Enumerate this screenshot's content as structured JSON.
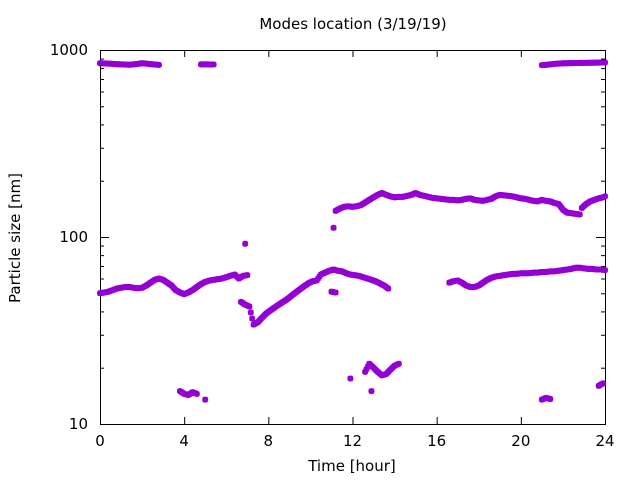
{
  "chart_data": {
    "type": "scatter",
    "title": "Modes location (3/19/19)",
    "xlabel": "Time [hour]",
    "ylabel": "Particle size [nm]",
    "xlim": [
      0,
      24
    ],
    "ylim": [
      10,
      1000
    ],
    "yscale": "log",
    "grid": false,
    "legend": "none",
    "marker": "asterisk",
    "x_ticks": [
      {
        "value": 0,
        "label": "0"
      },
      {
        "value": 4,
        "label": "4"
      },
      {
        "value": 8,
        "label": "8"
      },
      {
        "value": 12,
        "label": "12"
      },
      {
        "value": 16,
        "label": "16"
      },
      {
        "value": 20,
        "label": "20"
      },
      {
        "value": 24,
        "label": "24"
      }
    ],
    "y_ticks": [
      {
        "value": 10,
        "label": "10"
      },
      {
        "value": 100,
        "label": "100"
      },
      {
        "value": 1000,
        "label": "1000"
      }
    ],
    "color": "#9400d3",
    "series": [
      {
        "segments": [
          [
            [
              0.0,
              850
            ],
            [
              0.2,
              848
            ],
            [
              0.4,
              846
            ],
            [
              0.6,
              843
            ],
            [
              0.8,
              840
            ],
            [
              1.0,
              838
            ],
            [
              1.2,
              836
            ],
            [
              1.4,
              834
            ],
            [
              1.6,
              838
            ],
            [
              1.8,
              843
            ],
            [
              2.0,
              850
            ],
            [
              2.2,
              846
            ],
            [
              2.4,
              840
            ],
            [
              2.6,
              836
            ],
            [
              2.8,
              833
            ]
          ],
          [
            [
              4.8,
              838
            ],
            [
              5.0,
              838
            ],
            [
              5.4,
              836
            ]
          ],
          [
            [
              21.0,
              830
            ],
            [
              21.2,
              833
            ],
            [
              21.4,
              838
            ],
            [
              21.6,
              843
            ],
            [
              21.8,
              846
            ],
            [
              22.0,
              849
            ],
            [
              22.2,
              850
            ],
            [
              22.4,
              851
            ],
            [
              22.6,
              852
            ],
            [
              22.8,
              853
            ],
            [
              23.0,
              853
            ],
            [
              23.2,
              854
            ],
            [
              23.4,
              855
            ],
            [
              23.6,
              856
            ],
            [
              23.8,
              857
            ],
            [
              24.0,
              858
            ]
          ]
        ]
      },
      {
        "segments": [
          [
            [
              0.0,
              50
            ],
            [
              0.2,
              50.5
            ],
            [
              0.4,
              51
            ],
            [
              0.6,
              52
            ],
            [
              0.8,
              53
            ],
            [
              1.0,
              53.5
            ],
            [
              1.2,
              54
            ],
            [
              1.4,
              54
            ],
            [
              1.6,
              53.5
            ],
            [
              1.8,
              53.2
            ],
            [
              2.0,
              53.5
            ],
            [
              2.2,
              55
            ],
            [
              2.4,
              57
            ],
            [
              2.6,
              59
            ],
            [
              2.8,
              60
            ],
            [
              3.0,
              59
            ],
            [
              3.2,
              57
            ],
            [
              3.4,
              55
            ],
            [
              3.6,
              52
            ],
            [
              3.8,
              50.5
            ],
            [
              4.0,
              49.5
            ],
            [
              4.2,
              50.5
            ],
            [
              4.4,
              52
            ],
            [
              4.6,
              54
            ],
            [
              4.8,
              56
            ],
            [
              5.0,
              57.5
            ],
            [
              5.2,
              58.5
            ],
            [
              5.4,
              59
            ],
            [
              5.6,
              59.5
            ],
            [
              5.8,
              60
            ],
            [
              6.0,
              61
            ],
            [
              6.2,
              62
            ],
            [
              6.4,
              63
            ],
            [
              6.6,
              60
            ],
            [
              6.8,
              62
            ],
            [
              7.0,
              62.5
            ]
          ],
          [
            [
              6.7,
              45
            ],
            [
              6.9,
              43.5
            ],
            [
              7.1,
              42.5
            ],
            [
              7.3,
              34
            ],
            [
              7.5,
              35
            ],
            [
              7.7,
              37
            ],
            [
              7.9,
              39
            ],
            [
              8.1,
              40.5
            ],
            [
              8.3,
              42
            ],
            [
              8.5,
              43.5
            ],
            [
              8.7,
              45
            ],
            [
              8.9,
              46.5
            ],
            [
              9.1,
              48.5
            ],
            [
              9.3,
              50.5
            ],
            [
              9.5,
              52.5
            ],
            [
              9.7,
              54.5
            ],
            [
              9.9,
              56.5
            ],
            [
              10.1,
              58
            ],
            [
              10.3,
              58.5
            ],
            [
              10.5,
              63
            ],
            [
              10.7,
              64.5
            ],
            [
              10.9,
              66
            ],
            [
              11.1,
              67
            ],
            [
              11.3,
              66
            ],
            [
              11.5,
              65.5
            ],
            [
              11.7,
              64
            ],
            [
              11.9,
              63
            ],
            [
              12.1,
              62.5
            ],
            [
              12.3,
              62
            ],
            [
              12.5,
              61
            ],
            [
              12.7,
              60
            ],
            [
              12.9,
              59
            ],
            [
              13.1,
              58
            ],
            [
              13.3,
              56.5
            ],
            [
              13.5,
              55
            ],
            [
              13.7,
              53
            ]
          ],
          [
            [
              11.0,
              51
            ],
            [
              11.2,
              50.5
            ]
          ],
          [
            [
              16.6,
              57
            ],
            [
              16.8,
              58
            ],
            [
              17.0,
              58.5
            ],
            [
              17.2,
              57
            ],
            [
              17.4,
              55
            ],
            [
              17.6,
              54
            ],
            [
              17.8,
              54
            ],
            [
              18.0,
              55
            ],
            [
              18.2,
              57
            ],
            [
              18.4,
              59
            ],
            [
              18.6,
              60.5
            ],
            [
              18.8,
              61.5
            ],
            [
              19.0,
              62
            ],
            [
              19.2,
              62.5
            ],
            [
              19.4,
              63
            ],
            [
              19.6,
              63.5
            ],
            [
              19.8,
              63.5
            ],
            [
              20.0,
              64
            ],
            [
              20.2,
              64
            ],
            [
              20.4,
              64
            ],
            [
              20.6,
              64.5
            ],
            [
              20.8,
              64.5
            ],
            [
              21.0,
              65
            ],
            [
              21.2,
              65
            ],
            [
              21.4,
              65.5
            ],
            [
              21.6,
              65.5
            ],
            [
              21.8,
              66
            ],
            [
              22.0,
              66.5
            ],
            [
              22.2,
              67
            ],
            [
              22.4,
              67.5
            ],
            [
              22.6,
              68.5
            ],
            [
              22.8,
              68.5
            ],
            [
              23.0,
              68
            ],
            [
              23.2,
              67.5
            ],
            [
              23.4,
              67.5
            ],
            [
              23.6,
              67
            ],
            [
              23.8,
              67
            ],
            [
              24.0,
              66.5
            ]
          ]
        ]
      },
      {
        "segments": [
          [
            [
              6.9,
              92
            ]
          ],
          [
            [
              11.1,
              112
            ],
            [
              11.2,
              138
            ],
            [
              11.4,
              142
            ],
            [
              11.6,
              145
            ],
            [
              11.8,
              146
            ],
            [
              12.0,
              145
            ],
            [
              12.2,
              146
            ],
            [
              12.4,
              148
            ],
            [
              12.6,
              153
            ],
            [
              12.8,
              158
            ],
            [
              13.0,
              163
            ],
            [
              13.2,
              168
            ],
            [
              13.4,
              172
            ],
            [
              13.6,
              168
            ],
            [
              13.8,
              165
            ],
            [
              14.0,
              163
            ],
            [
              14.2,
              164
            ],
            [
              14.4,
              164
            ],
            [
              14.6,
              166
            ],
            [
              14.8,
              168
            ],
            [
              15.0,
              172
            ],
            [
              15.2,
              168
            ],
            [
              15.4,
              166
            ],
            [
              15.6,
              164
            ],
            [
              15.8,
              162
            ],
            [
              16.0,
              161
            ],
            [
              16.2,
              160
            ],
            [
              16.4,
              159
            ],
            [
              16.6,
              158
            ],
            [
              16.8,
              158
            ],
            [
              17.0,
              157
            ],
            [
              17.2,
              158
            ],
            [
              17.4,
              160
            ],
            [
              17.6,
              161
            ],
            [
              17.8,
              158
            ],
            [
              18.0,
              157
            ],
            [
              18.2,
              156
            ],
            [
              18.4,
              158
            ],
            [
              18.6,
              160
            ],
            [
              18.8,
              165
            ],
            [
              19.0,
              168
            ],
            [
              19.2,
              167
            ],
            [
              19.4,
              166
            ],
            [
              19.6,
              165
            ],
            [
              19.8,
              163
            ],
            [
              20.0,
              161
            ],
            [
              20.2,
              160
            ],
            [
              20.4,
              158
            ],
            [
              20.6,
              156
            ],
            [
              20.8,
              155
            ],
            [
              21.0,
              158
            ],
            [
              21.2,
              156
            ],
            [
              21.4,
              155
            ],
            [
              21.6,
              152
            ],
            [
              21.8,
              150
            ],
            [
              22.0,
              140
            ],
            [
              22.2,
              135
            ],
            [
              22.4,
              134
            ],
            [
              22.6,
              133
            ],
            [
              22.8,
              132
            ]
          ],
          [
            [
              22.9,
              143
            ],
            [
              23.1,
              150
            ],
            [
              23.3,
              155
            ],
            [
              23.5,
              158
            ],
            [
              23.7,
              161
            ],
            [
              23.9,
              163
            ],
            [
              24.0,
              165
            ]
          ]
        ]
      },
      {
        "segments": [
          [
            [
              3.8,
              15
            ],
            [
              4.0,
              14.5
            ],
            [
              4.2,
              14.3
            ],
            [
              4.4,
              14.8
            ],
            [
              4.6,
              14.5
            ]
          ],
          [
            [
              5.0,
              13.5
            ]
          ],
          [
            [
              11.9,
              17.5
            ]
          ],
          [
            [
              12.6,
              19
            ],
            [
              12.8,
              21
            ],
            [
              13.0,
              20
            ],
            [
              13.2,
              19
            ],
            [
              13.4,
              18.2
            ],
            [
              13.6,
              18.5
            ],
            [
              13.8,
              19.5
            ],
            [
              14.0,
              20.5
            ],
            [
              14.2,
              21
            ]
          ],
          [
            [
              12.9,
              15
            ]
          ],
          [
            [
              21.0,
              13.5
            ],
            [
              21.2,
              13.8
            ],
            [
              21.4,
              13.6
            ]
          ],
          [
            [
              23.7,
              16
            ],
            [
              23.9,
              16.5
            ]
          ]
        ]
      }
    ]
  }
}
